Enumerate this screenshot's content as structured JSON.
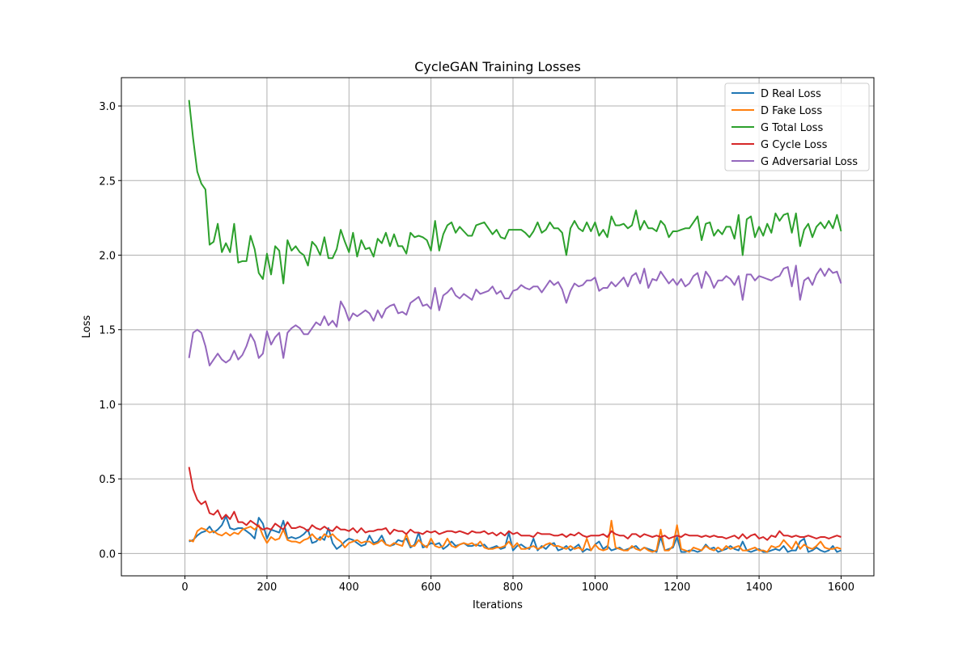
{
  "chart_data": {
    "type": "line",
    "title": "CycleGAN Training Losses",
    "xlabel": "Iterations",
    "ylabel": "Loss",
    "xlim": [
      -155,
      1680
    ],
    "ylim": [
      -0.15,
      3.19
    ],
    "xticks": [
      0,
      200,
      400,
      600,
      800,
      1000,
      1200,
      1400,
      1600
    ],
    "yticks": [
      0.0,
      0.5,
      1.0,
      1.5,
      2.0,
      2.5,
      3.0
    ],
    "xtick_labels": [
      "0",
      "200",
      "400",
      "600",
      "800",
      "1000",
      "1200",
      "1400",
      "1600"
    ],
    "ytick_labels": [
      "0.0",
      "0.5",
      "1.0",
      "1.5",
      "2.0",
      "2.5",
      "3.0"
    ],
    "grid": true,
    "legend_position": "top-right",
    "x": [
      10,
      20,
      30,
      40,
      50,
      60,
      70,
      80,
      90,
      100,
      110,
      120,
      130,
      140,
      150,
      160,
      170,
      180,
      190,
      200,
      210,
      220,
      230,
      240,
      250,
      260,
      270,
      280,
      290,
      300,
      310,
      320,
      330,
      340,
      350,
      360,
      370,
      380,
      390,
      400,
      410,
      420,
      430,
      440,
      450,
      460,
      470,
      480,
      490,
      500,
      510,
      520,
      530,
      540,
      550,
      560,
      570,
      580,
      590,
      600,
      610,
      620,
      630,
      640,
      650,
      660,
      670,
      680,
      690,
      700,
      710,
      720,
      730,
      740,
      750,
      760,
      770,
      780,
      790,
      800,
      810,
      820,
      830,
      840,
      850,
      860,
      870,
      880,
      890,
      900,
      910,
      920,
      930,
      940,
      950,
      960,
      970,
      980,
      990,
      1000,
      1010,
      1020,
      1030,
      1040,
      1050,
      1060,
      1070,
      1080,
      1090,
      1100,
      1110,
      1120,
      1130,
      1140,
      1150,
      1160,
      1170,
      1180,
      1190,
      1200,
      1210,
      1220,
      1230,
      1240,
      1250,
      1260,
      1270,
      1280,
      1290,
      1300,
      1310,
      1320,
      1330,
      1340,
      1350,
      1360,
      1370,
      1380,
      1390,
      1400,
      1410,
      1420,
      1430,
      1440,
      1450,
      1460,
      1470,
      1480,
      1490,
      1500,
      1510,
      1520,
      1530,
      1540,
      1550,
      1560,
      1570,
      1580,
      1590,
      1600
    ],
    "series": [
      {
        "name": "D Real Loss",
        "color": "#1f77b4",
        "values": [
          0.08,
          0.09,
          0.12,
          0.14,
          0.15,
          0.18,
          0.14,
          0.16,
          0.19,
          0.25,
          0.17,
          0.16,
          0.17,
          0.17,
          0.15,
          0.13,
          0.1,
          0.24,
          0.2,
          0.1,
          0.16,
          0.15,
          0.14,
          0.22,
          0.1,
          0.11,
          0.1,
          0.11,
          0.13,
          0.16,
          0.07,
          0.08,
          0.11,
          0.09,
          0.17,
          0.07,
          0.03,
          0.05,
          0.08,
          0.1,
          0.09,
          0.07,
          0.05,
          0.06,
          0.12,
          0.07,
          0.08,
          0.12,
          0.06,
          0.05,
          0.06,
          0.09,
          0.08,
          0.1,
          0.04,
          0.06,
          0.14,
          0.04,
          0.05,
          0.07,
          0.06,
          0.07,
          0.03,
          0.05,
          0.08,
          0.05,
          0.06,
          0.07,
          0.05,
          0.05,
          0.06,
          0.05,
          0.06,
          0.03,
          0.04,
          0.05,
          0.03,
          0.04,
          0.14,
          0.02,
          0.05,
          0.06,
          0.04,
          0.03,
          0.1,
          0.02,
          0.05,
          0.03,
          0.06,
          0.07,
          0.02,
          0.03,
          0.05,
          0.02,
          0.04,
          0.06,
          0.01,
          0.03,
          0.02,
          0.06,
          0.08,
          0.03,
          0.05,
          0.02,
          0.03,
          0.04,
          0.02,
          0.03,
          0.04,
          0.05,
          0.02,
          0.04,
          0.03,
          0.02,
          0.01,
          0.11,
          0.02,
          0.03,
          0.04,
          0.11,
          0.01,
          0.01,
          0.02,
          0.02,
          0.01,
          0.02,
          0.06,
          0.03,
          0.04,
          0.01,
          0.02,
          0.03,
          0.05,
          0.03,
          0.02,
          0.08,
          0.02,
          0.01,
          0.02,
          0.03,
          0.01,
          0.01,
          0.02,
          0.03,
          0.02,
          0.05,
          0.01,
          0.02,
          0.02,
          0.08,
          0.1,
          0.01,
          0.02,
          0.04,
          0.02,
          0.01,
          0.02,
          0.05,
          0.01,
          0.02
        ]
      },
      {
        "name": "D Fake Loss",
        "color": "#ff7f0e",
        "values": [
          0.09,
          0.08,
          0.15,
          0.17,
          0.16,
          0.14,
          0.15,
          0.13,
          0.12,
          0.14,
          0.12,
          0.14,
          0.13,
          0.16,
          0.17,
          0.18,
          0.16,
          0.19,
          0.12,
          0.07,
          0.11,
          0.09,
          0.1,
          0.16,
          0.09,
          0.08,
          0.08,
          0.07,
          0.09,
          0.1,
          0.13,
          0.1,
          0.09,
          0.13,
          0.11,
          0.13,
          0.1,
          0.08,
          0.04,
          0.07,
          0.08,
          0.09,
          0.07,
          0.08,
          0.08,
          0.06,
          0.07,
          0.09,
          0.06,
          0.05,
          0.07,
          0.06,
          0.05,
          0.13,
          0.05,
          0.05,
          0.09,
          0.06,
          0.04,
          0.1,
          0.05,
          0.04,
          0.05,
          0.1,
          0.05,
          0.04,
          0.06,
          0.07,
          0.06,
          0.07,
          0.05,
          0.08,
          0.04,
          0.03,
          0.03,
          0.04,
          0.04,
          0.05,
          0.08,
          0.04,
          0.07,
          0.03,
          0.03,
          0.04,
          0.05,
          0.03,
          0.04,
          0.06,
          0.07,
          0.05,
          0.05,
          0.04,
          0.03,
          0.05,
          0.03,
          0.04,
          0.02,
          0.1,
          0.02,
          0.06,
          0.03,
          0.02,
          0.03,
          0.22,
          0.04,
          0.03,
          0.02,
          0.02,
          0.05,
          0.03,
          0.02,
          0.04,
          0.02,
          0.01,
          0.02,
          0.16,
          0.02,
          0.02,
          0.05,
          0.19,
          0.03,
          0.02,
          0.01,
          0.04,
          0.03,
          0.02,
          0.05,
          0.03,
          0.02,
          0.04,
          0.02,
          0.05,
          0.03,
          0.04,
          0.05,
          0.02,
          0.02,
          0.03,
          0.04,
          0.02,
          0.02,
          0.01,
          0.05,
          0.04,
          0.05,
          0.09,
          0.06,
          0.03,
          0.08,
          0.03,
          0.06,
          0.04,
          0.03,
          0.05,
          0.08,
          0.04,
          0.03,
          0.03,
          0.04,
          0.03
        ]
      },
      {
        "name": "G Total Loss",
        "color": "#2ca02c",
        "values": [
          3.04,
          2.78,
          2.56,
          2.48,
          2.44,
          2.07,
          2.09,
          2.21,
          2.02,
          2.08,
          2.02,
          2.21,
          1.95,
          1.96,
          1.96,
          2.13,
          2.04,
          1.88,
          1.84,
          2.01,
          1.87,
          2.06,
          2.03,
          1.81,
          2.1,
          2.03,
          2.06,
          2.02,
          2.0,
          1.93,
          2.09,
          2.06,
          2.0,
          2.12,
          1.98,
          1.98,
          2.04,
          2.17,
          2.09,
          2.02,
          2.15,
          1.99,
          2.1,
          2.04,
          2.05,
          1.99,
          2.11,
          2.08,
          2.15,
          2.06,
          2.14,
          2.06,
          2.06,
          2.01,
          2.15,
          2.12,
          2.13,
          2.12,
          2.1,
          2.03,
          2.23,
          2.03,
          2.14,
          2.2,
          2.22,
          2.15,
          2.19,
          2.16,
          2.13,
          2.13,
          2.2,
          2.21,
          2.22,
          2.18,
          2.14,
          2.17,
          2.12,
          2.11,
          2.17,
          2.17,
          2.17,
          2.17,
          2.15,
          2.12,
          2.16,
          2.22,
          2.15,
          2.17,
          2.22,
          2.18,
          2.18,
          2.15,
          2.0,
          2.18,
          2.23,
          2.18,
          2.16,
          2.22,
          2.16,
          2.22,
          2.13,
          2.17,
          2.12,
          2.26,
          2.2,
          2.2,
          2.21,
          2.18,
          2.2,
          2.3,
          2.17,
          2.23,
          2.18,
          2.18,
          2.16,
          2.23,
          2.2,
          2.12,
          2.16,
          2.16,
          2.17,
          2.18,
          2.18,
          2.22,
          2.26,
          2.1,
          2.21,
          2.22,
          2.13,
          2.17,
          2.14,
          2.19,
          2.19,
          2.11,
          2.27,
          2.0,
          2.24,
          2.26,
          2.12,
          2.19,
          2.13,
          2.21,
          2.15,
          2.28,
          2.23,
          2.27,
          2.28,
          2.15,
          2.28,
          2.06,
          2.17,
          2.21,
          2.12,
          2.19,
          2.22,
          2.18,
          2.23,
          2.18,
          2.27,
          2.16
        ]
      },
      {
        "name": "G Cycle Loss",
        "color": "#d62728",
        "values": [
          0.58,
          0.43,
          0.36,
          0.33,
          0.35,
          0.27,
          0.26,
          0.29,
          0.23,
          0.26,
          0.23,
          0.28,
          0.21,
          0.21,
          0.19,
          0.22,
          0.2,
          0.18,
          0.16,
          0.17,
          0.16,
          0.2,
          0.18,
          0.16,
          0.21,
          0.17,
          0.17,
          0.18,
          0.17,
          0.15,
          0.19,
          0.17,
          0.16,
          0.18,
          0.16,
          0.15,
          0.18,
          0.16,
          0.16,
          0.15,
          0.17,
          0.14,
          0.17,
          0.14,
          0.15,
          0.15,
          0.16,
          0.16,
          0.17,
          0.13,
          0.16,
          0.15,
          0.15,
          0.13,
          0.16,
          0.14,
          0.14,
          0.13,
          0.15,
          0.14,
          0.15,
          0.13,
          0.14,
          0.15,
          0.15,
          0.14,
          0.15,
          0.14,
          0.13,
          0.15,
          0.14,
          0.14,
          0.15,
          0.13,
          0.14,
          0.12,
          0.14,
          0.12,
          0.15,
          0.13,
          0.14,
          0.12,
          0.12,
          0.12,
          0.11,
          0.14,
          0.13,
          0.13,
          0.13,
          0.12,
          0.12,
          0.13,
          0.11,
          0.13,
          0.12,
          0.14,
          0.12,
          0.11,
          0.12,
          0.12,
          0.12,
          0.13,
          0.11,
          0.15,
          0.13,
          0.12,
          0.12,
          0.1,
          0.13,
          0.13,
          0.11,
          0.13,
          0.12,
          0.11,
          0.12,
          0.11,
          0.12,
          0.1,
          0.11,
          0.12,
          0.11,
          0.13,
          0.12,
          0.12,
          0.12,
          0.11,
          0.12,
          0.11,
          0.12,
          0.11,
          0.11,
          0.1,
          0.11,
          0.12,
          0.1,
          0.13,
          0.1,
          0.12,
          0.13,
          0.1,
          0.11,
          0.09,
          0.12,
          0.11,
          0.15,
          0.12,
          0.12,
          0.11,
          0.12,
          0.11,
          0.11,
          0.12,
          0.11,
          0.1,
          0.11,
          0.11,
          0.1,
          0.11,
          0.12,
          0.11
        ]
      },
      {
        "name": "G Adversarial Loss",
        "color": "#9467bd",
        "values": [
          1.31,
          1.48,
          1.5,
          1.48,
          1.39,
          1.26,
          1.3,
          1.34,
          1.3,
          1.28,
          1.3,
          1.36,
          1.3,
          1.33,
          1.39,
          1.47,
          1.42,
          1.31,
          1.34,
          1.49,
          1.4,
          1.45,
          1.48,
          1.31,
          1.48,
          1.51,
          1.53,
          1.51,
          1.47,
          1.47,
          1.51,
          1.55,
          1.53,
          1.59,
          1.53,
          1.56,
          1.52,
          1.69,
          1.64,
          1.56,
          1.61,
          1.59,
          1.61,
          1.63,
          1.61,
          1.56,
          1.63,
          1.58,
          1.64,
          1.66,
          1.67,
          1.61,
          1.62,
          1.6,
          1.68,
          1.7,
          1.72,
          1.66,
          1.67,
          1.64,
          1.78,
          1.63,
          1.73,
          1.75,
          1.78,
          1.73,
          1.71,
          1.74,
          1.72,
          1.7,
          1.77,
          1.74,
          1.75,
          1.76,
          1.79,
          1.74,
          1.76,
          1.71,
          1.71,
          1.76,
          1.77,
          1.8,
          1.78,
          1.77,
          1.79,
          1.79,
          1.75,
          1.79,
          1.83,
          1.8,
          1.82,
          1.77,
          1.68,
          1.76,
          1.81,
          1.79,
          1.8,
          1.83,
          1.83,
          1.85,
          1.76,
          1.78,
          1.78,
          1.82,
          1.79,
          1.82,
          1.85,
          1.79,
          1.86,
          1.88,
          1.81,
          1.91,
          1.78,
          1.84,
          1.83,
          1.89,
          1.85,
          1.81,
          1.84,
          1.8,
          1.84,
          1.79,
          1.81,
          1.86,
          1.88,
          1.78,
          1.89,
          1.85,
          1.78,
          1.83,
          1.83,
          1.86,
          1.84,
          1.8,
          1.86,
          1.7,
          1.87,
          1.87,
          1.83,
          1.86,
          1.85,
          1.84,
          1.83,
          1.85,
          1.86,
          1.91,
          1.92,
          1.79,
          1.93,
          1.7,
          1.83,
          1.85,
          1.8,
          1.87,
          1.91,
          1.86,
          1.91,
          1.88,
          1.89,
          1.81
        ]
      }
    ]
  }
}
